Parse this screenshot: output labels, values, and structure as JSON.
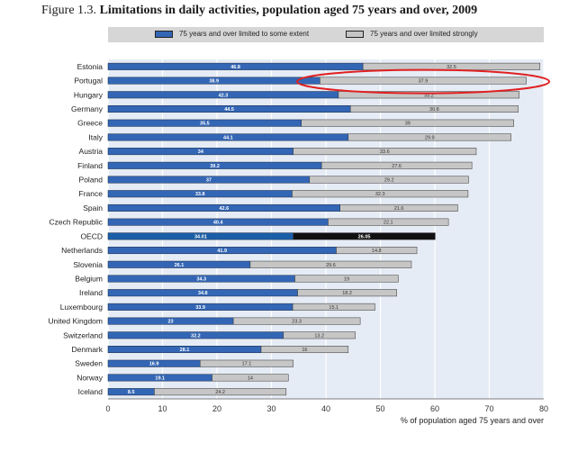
{
  "title": {
    "lead": "Figure 1.3. ",
    "main": "Limitations in daily activities, population aged 75 years and over, 2009"
  },
  "legend": {
    "some": {
      "label": "75 years and over limited to some extent",
      "color": "#3366b5"
    },
    "strong": {
      "label": "75 years and over limited strongly",
      "color": "#c6c6c6"
    }
  },
  "colors": {
    "plot_bg": "#e6ecf5",
    "oecd_some": "#1a5fa6",
    "oecd_strong": "#111111",
    "annotation": "#e02020"
  },
  "chart_data": {
    "type": "bar",
    "orientation": "horizontal",
    "stacked": true,
    "categories": [
      "Estonia",
      "Portugal",
      "Hungary",
      "Germany",
      "Greece",
      "Italy",
      "Austria",
      "Finland",
      "Poland",
      "France",
      "Spain",
      "Czech Republic",
      "OECD",
      "Netherlands",
      "Slovenia",
      "Belgium",
      "Ireland",
      "Luxembourg",
      "United Kingdom",
      "Switzerland",
      "Denmark",
      "Sweden",
      "Norway",
      "Iceland"
    ],
    "series": [
      {
        "name": "75 years and over limited to some extent",
        "values": [
          46.8,
          38.9,
          42.3,
          44.5,
          35.5,
          44.1,
          34.0,
          39.2,
          37.0,
          33.8,
          42.6,
          40.4,
          34.01,
          41.9,
          26.1,
          34.3,
          34.8,
          33.9,
          23.0,
          32.2,
          28.1,
          16.9,
          19.1,
          8.5
        ],
        "labels": [
          "46.8",
          "38.9",
          "42.3",
          "44.5",
          "35.5",
          "44.1",
          "34",
          "39.2",
          "37",
          "33.8",
          "42.6",
          "40.4",
          "34.01",
          "41.9",
          "26.1",
          "34.3",
          "34.8",
          "33.9",
          "23",
          "32.2",
          "28.1",
          "16.9",
          "19.1",
          "8.5"
        ]
      },
      {
        "name": "75 years and over limited strongly",
        "values": [
          32.5,
          37.9,
          33.2,
          30.8,
          39.0,
          29.9,
          33.6,
          27.6,
          29.2,
          32.3,
          21.6,
          22.1,
          26.05,
          14.8,
          29.6,
          19.0,
          18.2,
          15.1,
          23.3,
          13.2,
          16.0,
          17.1,
          14.0,
          24.2
        ],
        "labels": [
          "32.5",
          "37.9",
          "33.2",
          "30.8",
          "39",
          "29.9",
          "33.6",
          "27.6",
          "29.2",
          "32.3",
          "21.6",
          "22.1",
          "26.05",
          "14.8",
          "29.6",
          "19",
          "18.2",
          "15.1",
          "23.3",
          "13.2",
          "16",
          "17.1",
          "14",
          "24.2"
        ]
      }
    ],
    "xlim": [
      0,
      80
    ],
    "xticks": [
      "0",
      "10",
      "20",
      "30",
      "40",
      "50",
      "60",
      "70",
      "80"
    ],
    "xlabel": "% of population aged 75 years and over",
    "grid": true,
    "highlight_category": "Portugal"
  }
}
